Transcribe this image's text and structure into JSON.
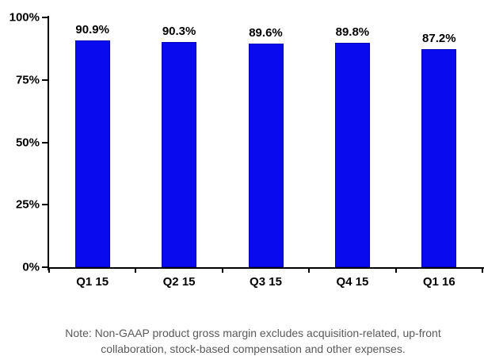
{
  "chart_data": {
    "type": "bar",
    "categories": [
      "Q1 15",
      "Q2 15",
      "Q3 15",
      "Q4 15",
      "Q1 16"
    ],
    "values": [
      90.9,
      90.3,
      89.6,
      89.8,
      87.2
    ],
    "value_labels": [
      "90.9%",
      "90.3%",
      "89.6%",
      "89.8%",
      "87.2%"
    ],
    "title": "",
    "xlabel": "",
    "ylabel": "",
    "ylim": [
      0,
      100
    ],
    "y_ticks": [
      0,
      25,
      50,
      75,
      100
    ],
    "y_tick_labels": [
      "0%",
      "25%",
      "50%",
      "75%",
      "100%"
    ],
    "bar_color": "#0a0aee",
    "bar_border_color": "#0000b4",
    "axis_color": "#000000",
    "grid": false,
    "legend": null
  },
  "note": {
    "lines": [
      "Note: Non-GAAP product gross margin excludes acquisition-related, up-front",
      "collaboration, stock-based compensation and other expenses."
    ],
    "color": "#595959"
  }
}
